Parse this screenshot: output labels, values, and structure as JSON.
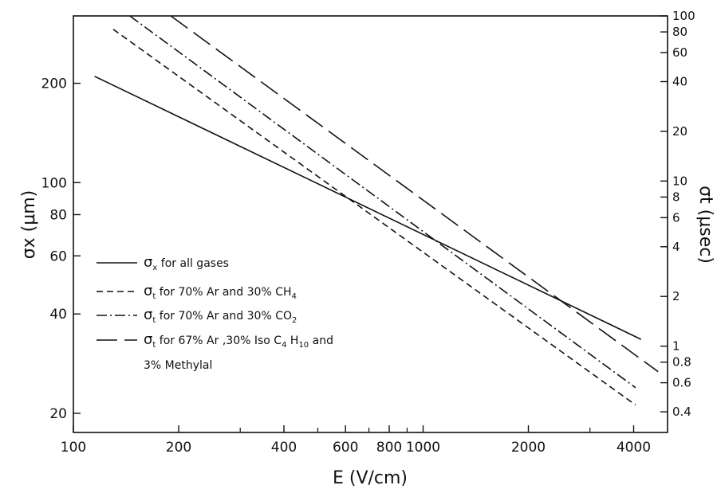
{
  "chart_data": {
    "type": "line",
    "title": "",
    "xlabel": "E (V/cm)",
    "ylabel": "σx (μm)",
    "y2label": "σt (μsec)",
    "x_scale": "log",
    "y_scale": "log",
    "y2_scale": "log",
    "xlim": [
      100,
      5000
    ],
    "ylim": [
      17.5,
      320
    ],
    "y2lim": [
      0.3,
      100
    ],
    "x_ticks": [
      100,
      200,
      400,
      600,
      800,
      1000,
      2000,
      4000
    ],
    "x_tick_labels": [
      "100",
      "200",
      "400",
      "600",
      "800",
      "1000",
      "2000",
      "4000"
    ],
    "x_minor_ticks": [
      300,
      500,
      700,
      900,
      3000
    ],
    "y_ticks": [
      20,
      40,
      60,
      80,
      100,
      200
    ],
    "y_tick_labels": [
      "20",
      "40",
      "60",
      "80",
      "100",
      "200"
    ],
    "y2_ticks": [
      0.4,
      0.6,
      0.8,
      1,
      2,
      4,
      6,
      8,
      10,
      20,
      40,
      60,
      80,
      100
    ],
    "y2_tick_labels": [
      "0.4",
      "0.6",
      "0.8",
      "1",
      "2",
      "4",
      "6",
      "8",
      "10",
      "20",
      "40",
      "60",
      "80",
      "100"
    ],
    "grid": false,
    "legend_position": "left-middle",
    "series": [
      {
        "name": "σx for all gases",
        "axis": "left",
        "dash": "solid",
        "x": [
          115,
          4200
        ],
        "y": [
          210,
          33.5
        ]
      },
      {
        "name": "σt for 70% Ar and 30% CH4",
        "axis": "right",
        "dash": "dash",
        "x": [
          130,
          4050
        ],
        "y": [
          83,
          0.44
        ]
      },
      {
        "name": "σt for 70% Ar and 30% CO2",
        "axis": "right",
        "dash": "dashdot",
        "x": [
          145,
          4050
        ],
        "y": [
          100,
          0.56
        ]
      },
      {
        "name": "σt for 67% Ar, 30% Iso C4 H10 and 3% Methylal",
        "axis": "right",
        "dash": "longdash",
        "x": [
          190,
          4700
        ],
        "y": [
          100,
          0.7
        ]
      }
    ],
    "legend": [
      {
        "line": "solid",
        "sym": "σ",
        "sub": "x",
        "text": "for all gases",
        "formula_a": "",
        "formula_sub": "",
        "formula_b": "",
        "line2": ""
      },
      {
        "line": "dash",
        "sym": "σ",
        "sub": "t",
        "text": "for 70% Ar and 30% CH",
        "formula_a": "",
        "formula_sub": "4",
        "formula_b": "",
        "line2": ""
      },
      {
        "line": "dashdot",
        "sym": "σ",
        "sub": "t",
        "text": "for 70% Ar and 30% CO",
        "formula_a": "",
        "formula_sub": "2",
        "formula_b": "",
        "line2": ""
      },
      {
        "line": "longdash",
        "sym": "σ",
        "sub": "t",
        "text": "for 67% Ar ,30% Iso C",
        "formula_a": "",
        "formula_sub": "4",
        "formula_b": " H",
        "formula_sub2": "10",
        "formula_c": " and",
        "line2": "3% Methylal"
      }
    ]
  }
}
